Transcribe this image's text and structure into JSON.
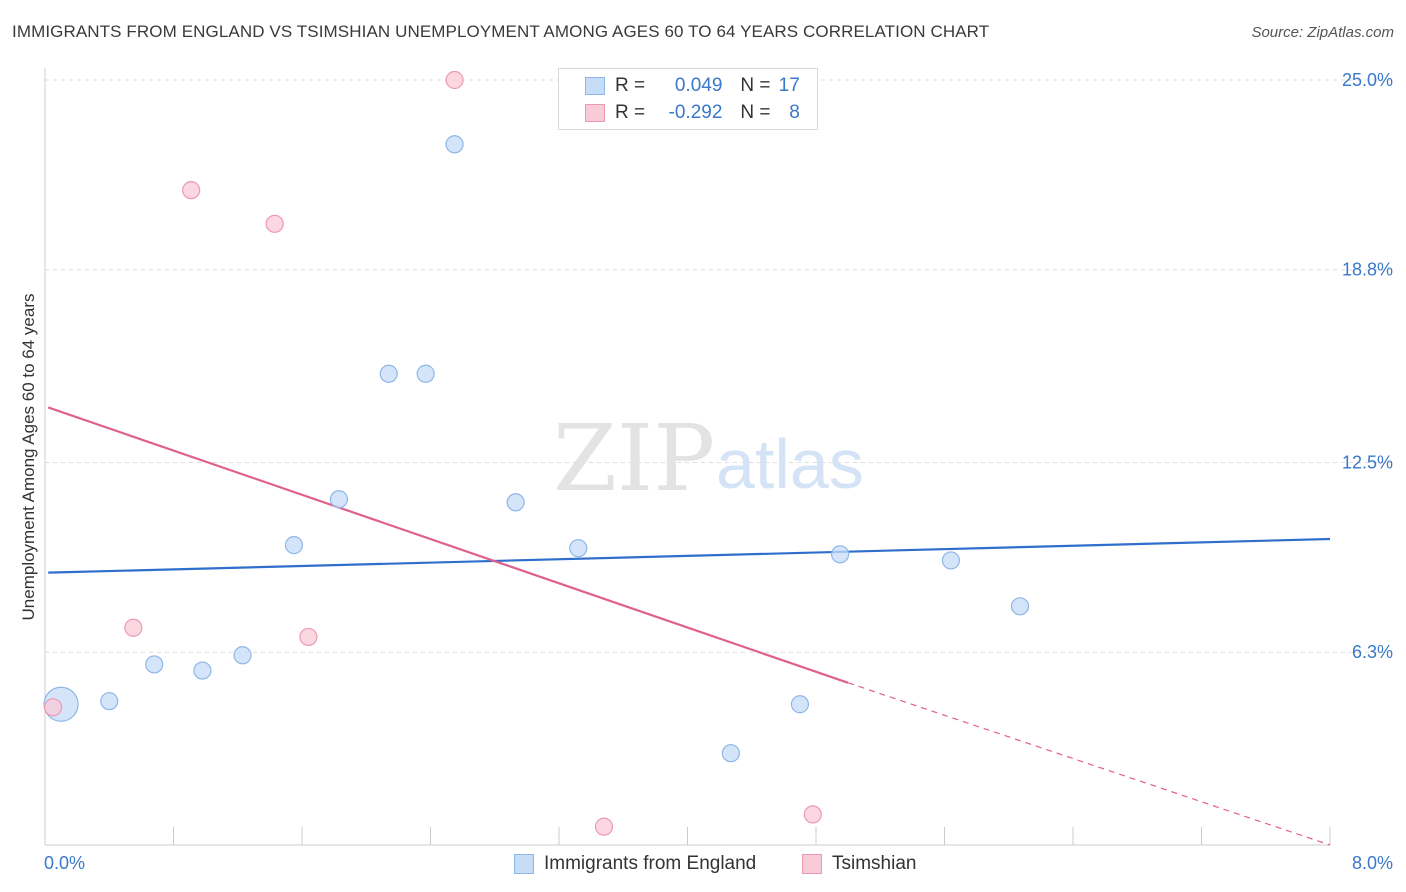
{
  "header": {
    "title": "IMMIGRANTS FROM ENGLAND VS TSIMSHIAN UNEMPLOYMENT AMONG AGES 60 TO 64 YEARS CORRELATION CHART",
    "source": "Source: ZipAtlas.com"
  },
  "watermark": {
    "zip": "ZIP",
    "atlas": "atlas"
  },
  "legend": {
    "rows": [
      {
        "r_label": "R =",
        "r_value": "0.049",
        "n_label": "N =",
        "n_value": "17"
      },
      {
        "r_label": "R =",
        "r_value": "-0.292",
        "n_label": "N =",
        "n_value": "8"
      }
    ],
    "bottom": [
      {
        "label": "Immigrants from England"
      },
      {
        "label": "Tsimshian"
      }
    ]
  },
  "colors": {
    "blue_fill": "#c6dcf7",
    "blue_stroke": "#8fb6e8",
    "blue_line": "#2f6fcb",
    "pink_fill": "#f9cad8",
    "pink_stroke": "#ee99b3",
    "pink_line": "#e0608c",
    "grid": "#dddddd",
    "tick_label": "#3a78c9"
  },
  "chart_data": {
    "type": "scatter",
    "title": "IMMIGRANTS FROM ENGLAND VS TSIMSHIAN UNEMPLOYMENT AMONG AGES 60 TO 64 YEARS CORRELATION CHART",
    "xlabel": "",
    "ylabel": "Unemployment Among Ages 60 to 64 years",
    "xlim": [
      0,
      8
    ],
    "ylim": [
      0,
      25.0
    ],
    "x_tick_labels": [
      "0.0%",
      "8.0%"
    ],
    "y_ticks": [
      6.3,
      12.5,
      18.8,
      25.0
    ],
    "y_tick_labels": [
      "6.3%",
      "12.5%",
      "18.8%",
      "25.0%"
    ],
    "grid": true,
    "legend_position": "top-center",
    "series": [
      {
        "name": "Immigrants from England",
        "points": [
          {
            "x": 0.1,
            "y": 4.6,
            "big": true
          },
          {
            "x": 0.4,
            "y": 4.7
          },
          {
            "x": 0.68,
            "y": 5.9
          },
          {
            "x": 0.98,
            "y": 5.7
          },
          {
            "x": 1.23,
            "y": 6.2
          },
          {
            "x": 1.55,
            "y": 9.8
          },
          {
            "x": 1.83,
            "y": 11.3
          },
          {
            "x": 2.14,
            "y": 15.4
          },
          {
            "x": 2.37,
            "y": 15.4
          },
          {
            "x": 2.55,
            "y": 22.9
          },
          {
            "x": 2.93,
            "y": 11.2
          },
          {
            "x": 3.32,
            "y": 9.7
          },
          {
            "x": 4.27,
            "y": 3.0
          },
          {
            "x": 4.7,
            "y": 4.6
          },
          {
            "x": 4.95,
            "y": 9.5
          },
          {
            "x": 5.64,
            "y": 9.3
          },
          {
            "x": 6.07,
            "y": 7.8
          }
        ],
        "trend": {
          "x": [
            0.02,
            8.0
          ],
          "y": [
            8.9,
            10.0
          ]
        }
      },
      {
        "name": "Tsimshian",
        "points": [
          {
            "x": 0.05,
            "y": 4.5
          },
          {
            "x": 0.55,
            "y": 7.1
          },
          {
            "x": 0.91,
            "y": 21.4
          },
          {
            "x": 1.43,
            "y": 20.3
          },
          {
            "x": 1.64,
            "y": 6.8
          },
          {
            "x": 2.55,
            "y": 25.0
          },
          {
            "x": 3.48,
            "y": 0.6
          },
          {
            "x": 4.78,
            "y": 1.0
          }
        ],
        "trend": {
          "x": [
            0.02,
            5.0
          ],
          "y": [
            14.3,
            5.3
          ]
        },
        "trend_dashed": {
          "x": [
            5.0,
            8.0
          ],
          "y": [
            5.3,
            0.0
          ]
        }
      }
    ]
  }
}
